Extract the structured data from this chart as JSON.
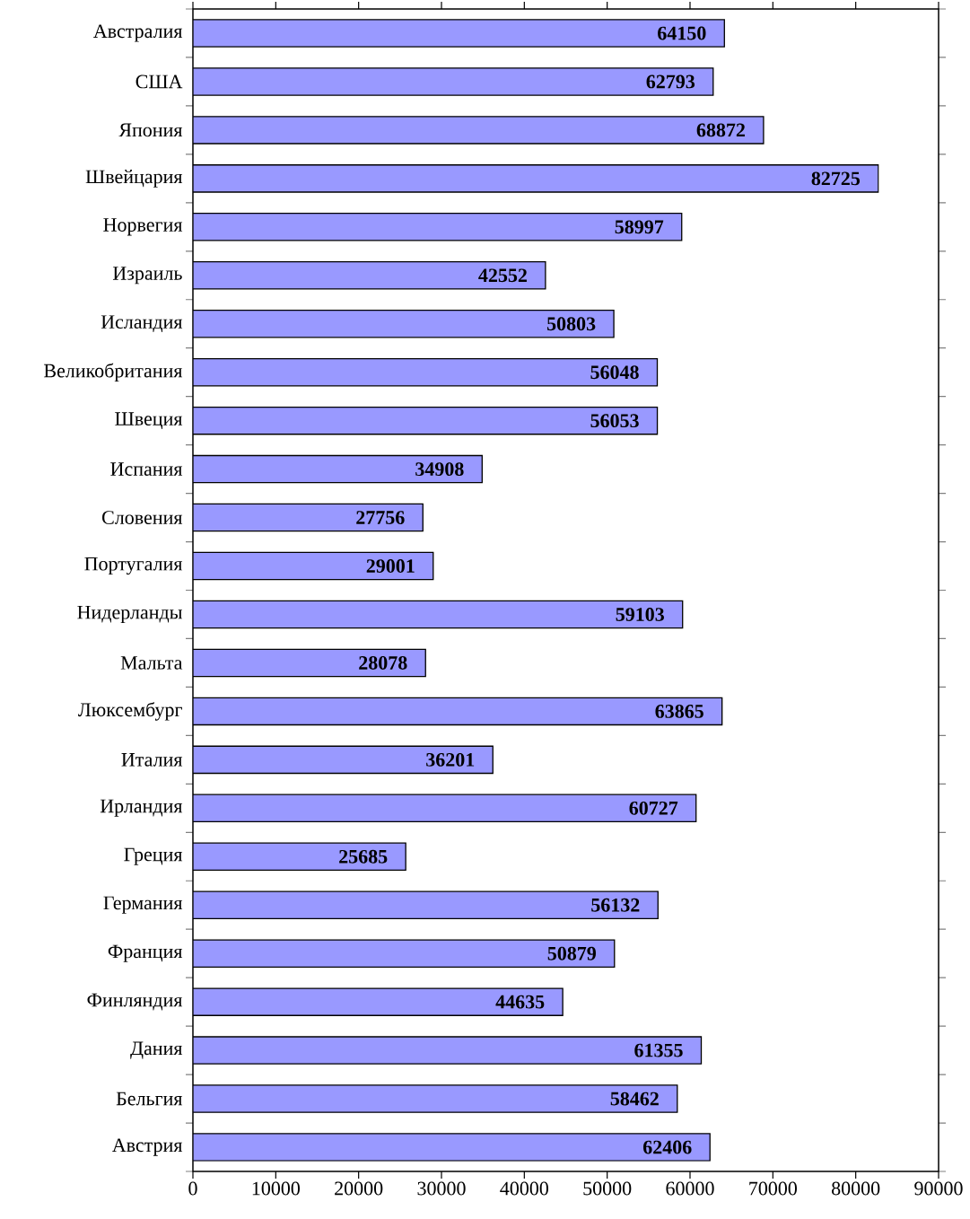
{
  "chart_data": {
    "type": "bar",
    "orientation": "horizontal",
    "categories": [
      "Австралия",
      "США",
      "Япония",
      "Швейцария",
      "Норвегия",
      "Израиль",
      "Исландия",
      "Великобритания",
      "Швеция",
      "Испания",
      "Словения",
      "Португалия",
      "Нидерланды",
      "Мальта",
      "Люксембург",
      "Италия",
      "Ирландия",
      "Греция",
      "Германия",
      "Франция",
      "Финляндия",
      "Дания",
      "Бельгия",
      "Австрия"
    ],
    "values": [
      64150,
      62793,
      68872,
      82725,
      58997,
      42552,
      50803,
      56048,
      56053,
      34908,
      27756,
      29001,
      59103,
      28078,
      63865,
      36201,
      60727,
      25685,
      56132,
      50879,
      44635,
      61355,
      58462,
      62406
    ],
    "color": "#9999ff",
    "data_labels": true,
    "grid": false,
    "xlim": [
      0,
      90000
    ],
    "xticks": [
      0,
      10000,
      20000,
      30000,
      40000,
      50000,
      60000,
      70000,
      80000,
      90000
    ]
  }
}
